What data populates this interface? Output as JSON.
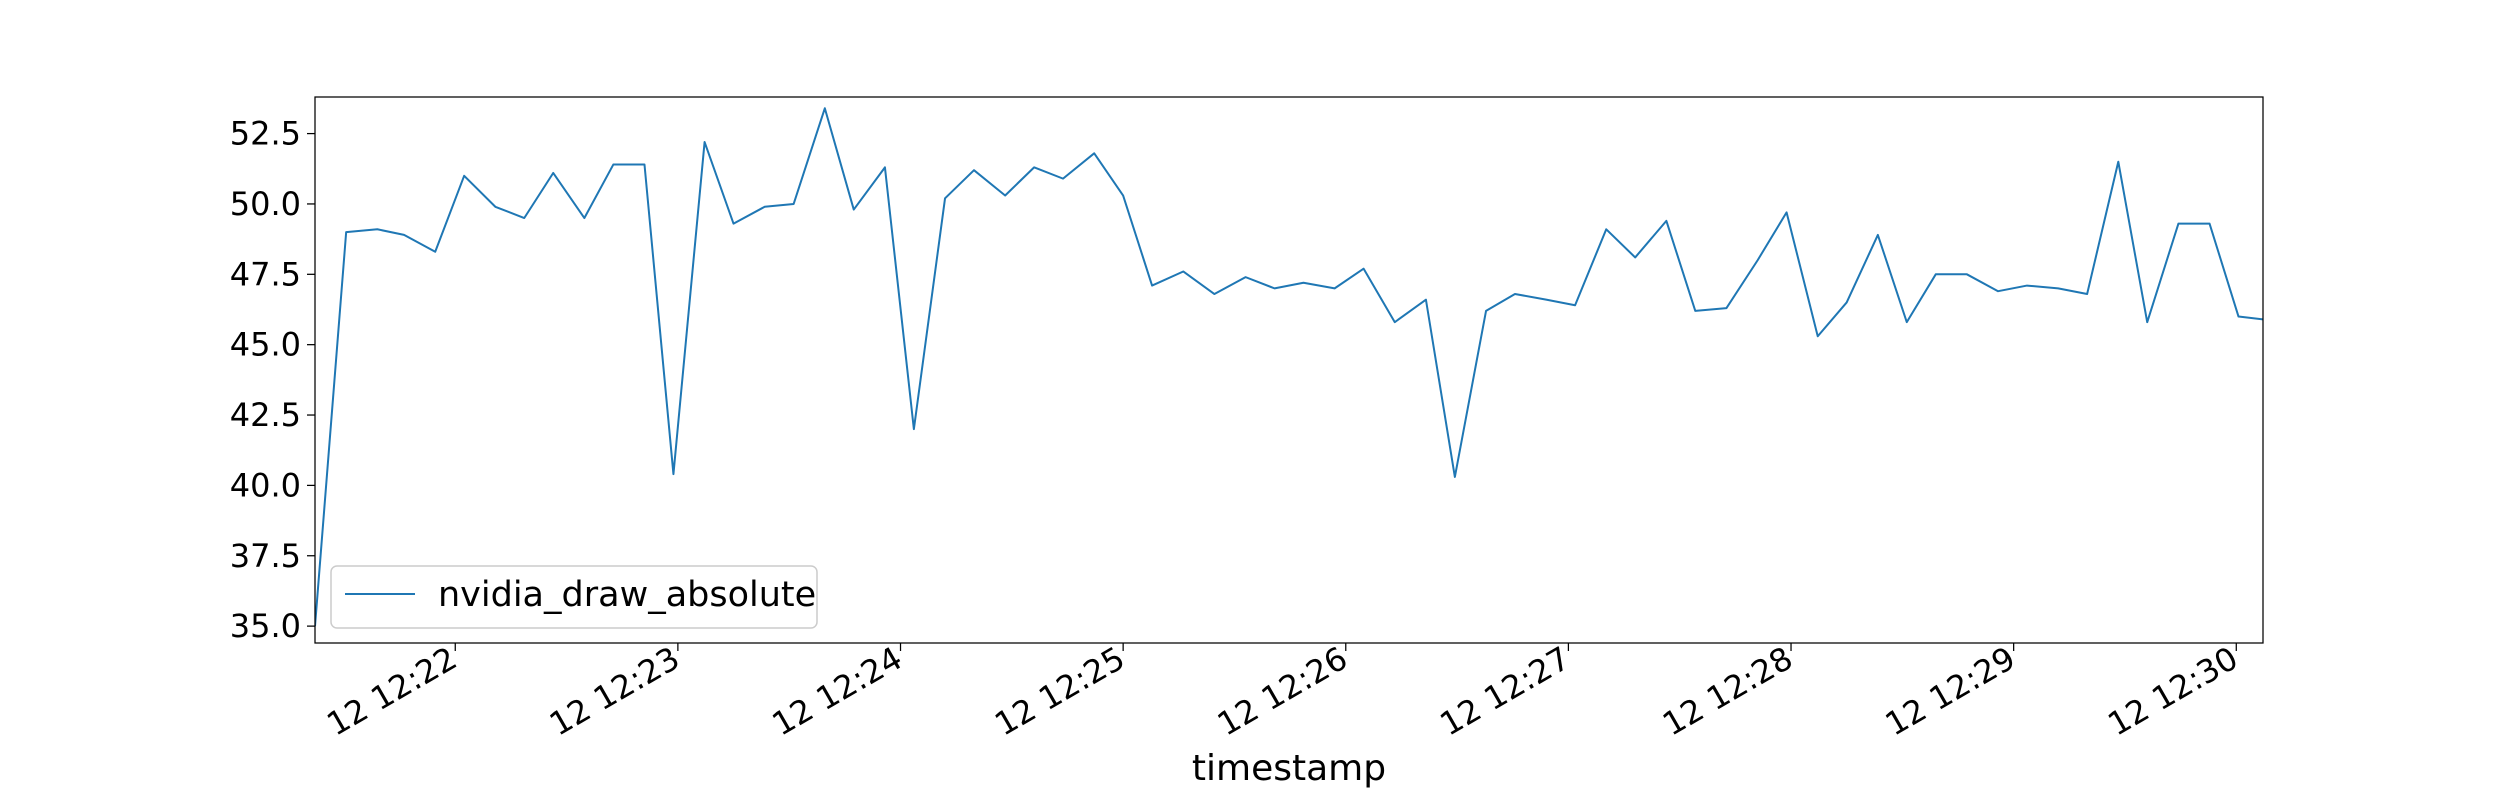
{
  "chart_data": {
    "type": "line",
    "title": "",
    "xlabel": "timestamp",
    "ylabel": "",
    "xlim": [
      -0.63,
      8.12
    ],
    "ylim": [
      34.4,
      53.8
    ],
    "grid": false,
    "legend_placement": "lower-left",
    "x_tick_values": [
      0,
      1,
      2,
      3,
      4,
      5,
      6,
      7,
      8
    ],
    "x_tick_labels": [
      "12 12:22",
      "12 12:23",
      "12 12:24",
      "12 12:25",
      "12 12:26",
      "12 12:27",
      "12 12:28",
      "12 12:29",
      "12 12:30"
    ],
    "y_ticks": [
      35.0,
      37.5,
      40.0,
      42.5,
      45.0,
      47.5,
      50.0,
      52.5
    ],
    "y_tick_labels": [
      "35.0",
      "37.5",
      "40.0",
      "42.5",
      "45.0",
      "47.5",
      "50.0",
      "52.5"
    ],
    "series": [
      {
        "name": "nvidia_draw_absolute",
        "color": "#1f77b4",
        "x": [
          -0.63,
          -0.49,
          -0.35,
          -0.23,
          -0.09,
          0.04,
          0.18,
          0.31,
          0.44,
          0.58,
          0.71,
          0.85,
          0.98,
          1.12,
          1.25,
          1.39,
          1.52,
          1.66,
          1.79,
          1.93,
          2.06,
          2.2,
          2.33,
          2.47,
          2.6,
          2.73,
          2.87,
          3.0,
          3.13,
          3.27,
          3.41,
          3.55,
          3.68,
          3.81,
          3.95,
          4.08,
          4.22,
          4.36,
          4.49,
          4.63,
          4.76,
          4.9,
          5.03,
          5.17,
          5.3,
          5.44,
          5.57,
          5.71,
          5.85,
          5.98,
          6.12,
          6.25,
          6.39,
          6.52,
          6.65,
          6.79,
          6.93,
          7.06,
          7.2,
          7.33,
          7.47,
          7.6,
          7.74,
          7.88,
          8.01,
          8.12
        ],
        "values": [
          35.0,
          49.0,
          49.1,
          48.9,
          48.3,
          51.0,
          49.9,
          49.5,
          51.1,
          49.5,
          51.4,
          51.4,
          40.4,
          52.2,
          49.3,
          49.9,
          50.0,
          53.4,
          49.8,
          51.3,
          42.0,
          50.2,
          51.2,
          50.3,
          51.3,
          50.9,
          51.8,
          50.3,
          47.1,
          47.6,
          46.8,
          47.4,
          47.0,
          47.2,
          47.0,
          47.7,
          45.8,
          46.6,
          40.3,
          46.2,
          46.8,
          46.6,
          46.4,
          49.1,
          48.1,
          49.4,
          46.2,
          46.3,
          48.0,
          49.7,
          45.3,
          46.5,
          48.9,
          45.8,
          47.5,
          47.5,
          46.9,
          47.1,
          47.0,
          46.8,
          51.5,
          45.8,
          49.3,
          49.3,
          46.0,
          45.9
        ]
      }
    ]
  }
}
